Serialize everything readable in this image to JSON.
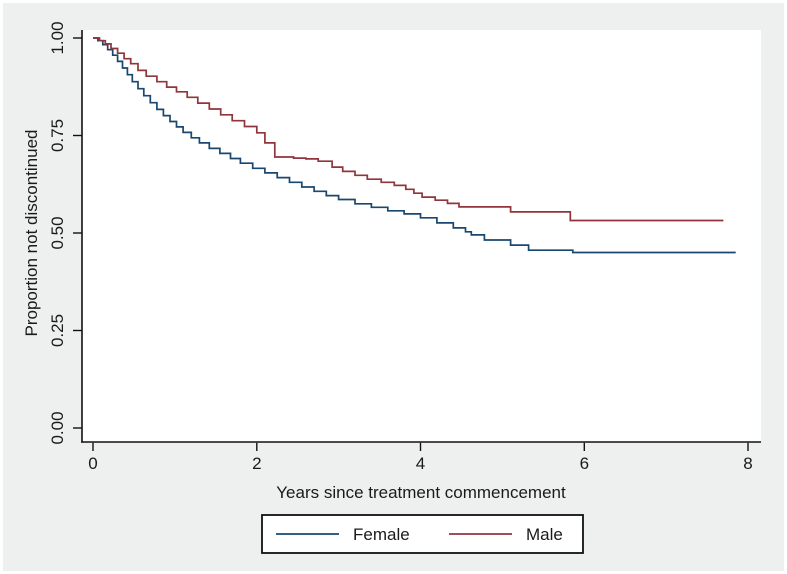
{
  "window": {
    "background_color": "#eef0ef",
    "plot_background_color": "#ffffff",
    "axis_color": "#111111",
    "text_color": "#1a1a1a"
  },
  "y_axis": {
    "title": "Proportion not discontinued",
    "tick_labels": [
      "0.00",
      "0.25",
      "0.50",
      "0.75",
      "1.00"
    ]
  },
  "x_axis": {
    "title": "Years since treatment commencement",
    "tick_labels": [
      "0",
      "2",
      "4",
      "6",
      "8"
    ]
  },
  "legend": {
    "items": [
      {
        "label": "Female",
        "color": "#1a476f"
      },
      {
        "label": "Male",
        "color": "#90353b"
      }
    ]
  },
  "chart_data": {
    "type": "line",
    "subtype": "kaplan-meier-step-survival",
    "title": "",
    "xlabel": "Years since treatment commencement",
    "ylabel": "Proportion not discontinued",
    "xlim": [
      0,
      8
    ],
    "ylim": [
      0,
      1
    ],
    "x_ticks": [
      0,
      2,
      4,
      6,
      8
    ],
    "y_ticks": [
      0.0,
      0.25,
      0.5,
      0.75,
      1.0
    ],
    "grid": false,
    "legend_position": "bottom-center",
    "series": [
      {
        "name": "Female",
        "color": "#1a476f",
        "final_value": 0.45,
        "end_x": 7.85,
        "points": [
          [
            0,
            1.0
          ],
          [
            0.06,
            0.993
          ],
          [
            0.12,
            0.983
          ],
          [
            0.18,
            0.97
          ],
          [
            0.24,
            0.956
          ],
          [
            0.3,
            0.94
          ],
          [
            0.36,
            0.923
          ],
          [
            0.42,
            0.906
          ],
          [
            0.48,
            0.888
          ],
          [
            0.55,
            0.87
          ],
          [
            0.62,
            0.852
          ],
          [
            0.7,
            0.834
          ],
          [
            0.78,
            0.817
          ],
          [
            0.86,
            0.801
          ],
          [
            0.94,
            0.786
          ],
          [
            1.02,
            0.772
          ],
          [
            1.1,
            0.758
          ],
          [
            1.2,
            0.744
          ],
          [
            1.3,
            0.731
          ],
          [
            1.42,
            0.717
          ],
          [
            1.55,
            0.704
          ],
          [
            1.68,
            0.691
          ],
          [
            1.8,
            0.679
          ],
          [
            1.95,
            0.666
          ],
          [
            2.1,
            0.654
          ],
          [
            2.25,
            0.642
          ],
          [
            2.4,
            0.63
          ],
          [
            2.55,
            0.618
          ],
          [
            2.7,
            0.607
          ],
          [
            2.85,
            0.596
          ],
          [
            3.0,
            0.586
          ],
          [
            3.2,
            0.575
          ],
          [
            3.4,
            0.566
          ],
          [
            3.6,
            0.557
          ],
          [
            3.8,
            0.549
          ],
          [
            4.0,
            0.539
          ],
          [
            4.2,
            0.526
          ],
          [
            4.4,
            0.513
          ],
          [
            4.55,
            0.503
          ],
          [
            4.62,
            0.495
          ],
          [
            4.78,
            0.482
          ],
          [
            5.1,
            0.469
          ],
          [
            5.32,
            0.456
          ],
          [
            5.86,
            0.45
          ],
          [
            7.85,
            0.45
          ]
        ]
      },
      {
        "name": "Male",
        "color": "#90353b",
        "final_value": 0.53,
        "end_x": 7.7,
        "points": [
          [
            0,
            1.0
          ],
          [
            0.08,
            0.993
          ],
          [
            0.15,
            0.985
          ],
          [
            0.22,
            0.973
          ],
          [
            0.3,
            0.961
          ],
          [
            0.38,
            0.947
          ],
          [
            0.46,
            0.934
          ],
          [
            0.55,
            0.917
          ],
          [
            0.65,
            0.902
          ],
          [
            0.78,
            0.888
          ],
          [
            0.9,
            0.874
          ],
          [
            1.02,
            0.862
          ],
          [
            1.15,
            0.848
          ],
          [
            1.28,
            0.833
          ],
          [
            1.42,
            0.818
          ],
          [
            1.56,
            0.803
          ],
          [
            1.7,
            0.788
          ],
          [
            1.85,
            0.773
          ],
          [
            2.0,
            0.757
          ],
          [
            2.1,
            0.731
          ],
          [
            2.22,
            0.695
          ],
          [
            2.45,
            0.692
          ],
          [
            2.6,
            0.69
          ],
          [
            2.75,
            0.684
          ],
          [
            2.92,
            0.669
          ],
          [
            3.05,
            0.658
          ],
          [
            3.2,
            0.648
          ],
          [
            3.35,
            0.638
          ],
          [
            3.52,
            0.63
          ],
          [
            3.68,
            0.622
          ],
          [
            3.82,
            0.612
          ],
          [
            3.92,
            0.602
          ],
          [
            4.02,
            0.592
          ],
          [
            4.18,
            0.584
          ],
          [
            4.33,
            0.576
          ],
          [
            4.47,
            0.567
          ],
          [
            5.1,
            0.554
          ],
          [
            5.83,
            0.532
          ],
          [
            7.7,
            0.532
          ]
        ]
      }
    ]
  }
}
